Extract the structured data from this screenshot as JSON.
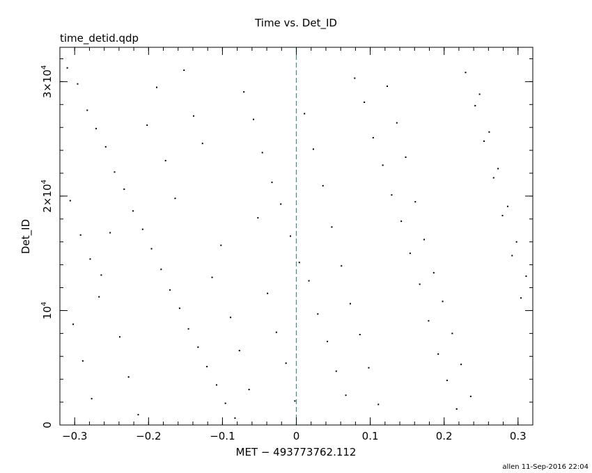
{
  "chart_data": {
    "type": "scatter",
    "title": "Time vs. Det_ID",
    "subtitle": "time_detid.qdp",
    "xlabel": "MET − 493773762.112",
    "ylabel": "Det_ID",
    "xlim": [
      -0.32,
      0.32
    ],
    "ylim": [
      0,
      33000
    ],
    "x_ticks": [
      -0.3,
      -0.2,
      -0.1,
      0,
      0.1,
      0.2,
      0.3
    ],
    "x_tick_labels": [
      "−0.3",
      "−0.2",
      "−0.1",
      "0",
      "0.1",
      "0.2",
      "0.3"
    ],
    "x_minor_step": 0.02,
    "y_ticks": [
      0,
      10000,
      20000,
      30000
    ],
    "y_tick_labels": [
      {
        "base": "0",
        "exp": ""
      },
      {
        "base": "10",
        "exp": "4"
      },
      {
        "base": "2×10",
        "exp": "4"
      },
      {
        "base": "3×10",
        "exp": "4"
      }
    ],
    "y_minor_step": 2000,
    "reference_line": {
      "x": 0,
      "color": "#2a9aa8",
      "style": "dashed"
    },
    "grid": false,
    "point_color": "#000000",
    "series": [
      {
        "points": [
          [
            -0.31,
            31200
          ],
          [
            -0.296,
            29800
          ],
          [
            -0.283,
            27500
          ],
          [
            -0.271,
            25900
          ],
          [
            -0.258,
            24300
          ],
          [
            -0.246,
            22100
          ],
          [
            -0.233,
            20600
          ],
          [
            -0.221,
            18700
          ],
          [
            -0.208,
            17100
          ],
          [
            -0.196,
            15400
          ],
          [
            -0.183,
            13600
          ],
          [
            -0.171,
            11800
          ],
          [
            -0.158,
            10200
          ],
          [
            -0.146,
            8400
          ],
          [
            -0.133,
            6800
          ],
          [
            -0.121,
            5100
          ],
          [
            -0.108,
            3500
          ],
          [
            -0.096,
            1900
          ],
          [
            -0.083,
            600
          ],
          [
            -0.071,
            29100
          ],
          [
            -0.058,
            26700
          ],
          [
            -0.046,
            23800
          ],
          [
            -0.033,
            21200
          ],
          [
            -0.021,
            19300
          ],
          [
            -0.008,
            16500
          ],
          [
            0.004,
            14200
          ],
          [
            0.017,
            12600
          ],
          [
            0.029,
            9700
          ],
          [
            0.042,
            7300
          ],
          [
            0.054,
            4700
          ],
          [
            0.067,
            2600
          ],
          [
            0.079,
            30300
          ],
          [
            0.092,
            28200
          ],
          [
            0.104,
            25100
          ],
          [
            0.117,
            22700
          ],
          [
            0.129,
            20100
          ],
          [
            0.142,
            17800
          ],
          [
            0.154,
            15000
          ],
          [
            0.167,
            12300
          ],
          [
            0.179,
            9100
          ],
          [
            0.192,
            6200
          ],
          [
            0.204,
            3900
          ],
          [
            0.217,
            1400
          ],
          [
            0.229,
            30800
          ],
          [
            0.242,
            27900
          ],
          [
            0.254,
            24800
          ],
          [
            0.267,
            21600
          ],
          [
            0.279,
            18300
          ],
          [
            0.292,
            14800
          ],
          [
            0.304,
            11100
          ],
          [
            -0.302,
            8800
          ],
          [
            -0.289,
            5600
          ],
          [
            -0.277,
            2300
          ],
          [
            -0.264,
            13100
          ],
          [
            -0.252,
            16800
          ],
          [
            -0.239,
            7700
          ],
          [
            -0.227,
            4200
          ],
          [
            -0.214,
            900
          ],
          [
            -0.202,
            26200
          ],
          [
            -0.189,
            29500
          ],
          [
            -0.177,
            23100
          ],
          [
            -0.164,
            19800
          ],
          [
            -0.152,
            31000
          ],
          [
            -0.139,
            27000
          ],
          [
            -0.127,
            24600
          ],
          [
            -0.114,
            12900
          ],
          [
            -0.102,
            15700
          ],
          [
            -0.089,
            9400
          ],
          [
            -0.077,
            6500
          ],
          [
            -0.064,
            3100
          ],
          [
            -0.052,
            18100
          ],
          [
            -0.039,
            11500
          ],
          [
            -0.027,
            8100
          ],
          [
            -0.014,
            5400
          ],
          [
            -0.002,
            2100
          ],
          [
            0.011,
            27200
          ],
          [
            0.023,
            24100
          ],
          [
            0.036,
            20900
          ],
          [
            0.048,
            17300
          ],
          [
            0.061,
            13900
          ],
          [
            0.073,
            10600
          ],
          [
            0.086,
            7900
          ],
          [
            0.098,
            5000
          ],
          [
            0.111,
            1800
          ],
          [
            0.123,
            29600
          ],
          [
            0.136,
            26400
          ],
          [
            0.148,
            23400
          ],
          [
            0.161,
            19500
          ],
          [
            0.173,
            16200
          ],
          [
            0.186,
            13300
          ],
          [
            0.198,
            10800
          ],
          [
            0.211,
            8000
          ],
          [
            0.223,
            5300
          ],
          [
            0.236,
            2500
          ],
          [
            0.248,
            28900
          ],
          [
            0.261,
            25600
          ],
          [
            0.273,
            22400
          ],
          [
            0.286,
            19100
          ],
          [
            0.298,
            16000
          ],
          [
            0.311,
            13000
          ],
          [
            -0.306,
            19600
          ],
          [
            -0.292,
            16600
          ],
          [
            -0.279,
            14500
          ],
          [
            -0.267,
            11200
          ]
        ]
      }
    ]
  },
  "footer": "allen 11-Sep-2016 22:04"
}
